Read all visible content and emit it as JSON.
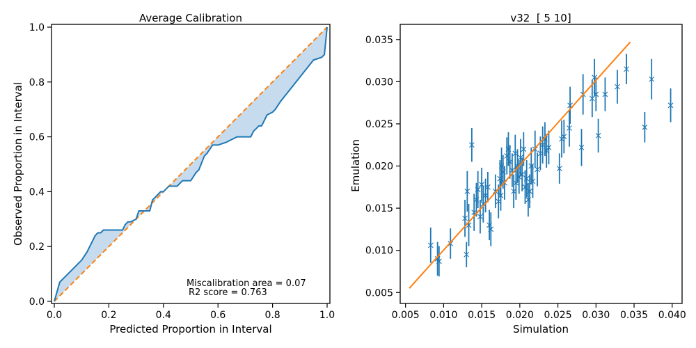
{
  "chart_data": [
    {
      "type": "line",
      "title": "Average Calibration",
      "xlabel": "Predicted Proportion in Interval",
      "ylabel": "Observed Proportion in Interval",
      "xlim": [
        0,
        1
      ],
      "ylim": [
        0,
        1
      ],
      "xticks": [
        "0.0",
        "0.2",
        "0.4",
        "0.6",
        "0.8",
        "1.0"
      ],
      "yticks": [
        "0.0",
        "0.2",
        "0.4",
        "0.6",
        "0.8",
        "1.0"
      ],
      "grid": false,
      "annotations": [
        "Miscalibration area = 0.07",
        "R2 score = 0.763"
      ],
      "colors": {
        "curve": "#1f77b4",
        "fill": "#c6dcee",
        "ideal": "#ff7f0e"
      },
      "series": [
        {
          "x": [
            0,
            0.02,
            0.03,
            0.05,
            0.07,
            0.09,
            0.1,
            0.12,
            0.13,
            0.14,
            0.15,
            0.16,
            0.17,
            0.18,
            0.2,
            0.25,
            0.26,
            0.27,
            0.28,
            0.3,
            0.31,
            0.33,
            0.35,
            0.36,
            0.37,
            0.38,
            0.39,
            0.4,
            0.41,
            0.42,
            0.45,
            0.47,
            0.5,
            0.52,
            0.53,
            0.55,
            0.56,
            0.58,
            0.6,
            0.63,
            0.65,
            0.67,
            0.72,
            0.73,
            0.75,
            0.76,
            0.78,
            0.8,
            0.81,
            0.83,
            0.95,
            0.98,
            0.99,
            1.0
          ],
          "y": [
            0,
            0.07,
            0.08,
            0.1,
            0.12,
            0.14,
            0.15,
            0.18,
            0.2,
            0.22,
            0.24,
            0.25,
            0.25,
            0.26,
            0.26,
            0.26,
            0.28,
            0.29,
            0.29,
            0.3,
            0.33,
            0.33,
            0.33,
            0.37,
            0.38,
            0.39,
            0.4,
            0.4,
            0.41,
            0.42,
            0.42,
            0.44,
            0.44,
            0.47,
            0.48,
            0.53,
            0.54,
            0.57,
            0.57,
            0.58,
            0.59,
            0.6,
            0.6,
            0.62,
            0.64,
            0.64,
            0.68,
            0.69,
            0.7,
            0.73,
            0.88,
            0.89,
            0.9,
            1.0
          ]
        },
        {
          "name": "ideal",
          "x": [
            0,
            1
          ],
          "y": [
            0,
            1
          ]
        }
      ]
    },
    {
      "type": "scatter",
      "title": "v32  [ 5 10]",
      "xlabel": "Simulation",
      "ylabel": "Emulation",
      "xlim": [
        0.0043,
        0.0413
      ],
      "ylim": [
        0.0037,
        0.0368
      ],
      "xticks": [
        "0.005",
        "0.010",
        "0.015",
        "0.020",
        "0.025",
        "0.030",
        "0.035",
        "0.040"
      ],
      "yticks": [
        "0.005",
        "0.010",
        "0.015",
        "0.020",
        "0.025",
        "0.030",
        "0.035"
      ],
      "grid": false,
      "colors": {
        "points": "#1f77b4",
        "fit": "#ff7f0e"
      },
      "fit_line": {
        "x": [
          0.0055,
          0.0345
        ],
        "y": [
          0.0055,
          0.0347
        ]
      },
      "points": [
        {
          "x": 0.0083,
          "y": 0.0106,
          "err": 0.0021
        },
        {
          "x": 0.0092,
          "y": 0.009,
          "err": 0.002
        },
        {
          "x": 0.0094,
          "y": 0.0087,
          "err": 0.0018
        },
        {
          "x": 0.0109,
          "y": 0.0108,
          "err": 0.0018
        },
        {
          "x": 0.0128,
          "y": 0.0138,
          "err": 0.0022
        },
        {
          "x": 0.013,
          "y": 0.0095,
          "err": 0.0015
        },
        {
          "x": 0.0131,
          "y": 0.017,
          "err": 0.0024
        },
        {
          "x": 0.0133,
          "y": 0.013,
          "err": 0.0025
        },
        {
          "x": 0.0137,
          "y": 0.0225,
          "err": 0.002
        },
        {
          "x": 0.014,
          "y": 0.0145,
          "err": 0.0022
        },
        {
          "x": 0.0143,
          "y": 0.016,
          "err": 0.002
        },
        {
          "x": 0.0145,
          "y": 0.0172,
          "err": 0.0022
        },
        {
          "x": 0.0148,
          "y": 0.014,
          "err": 0.002
        },
        {
          "x": 0.015,
          "y": 0.0178,
          "err": 0.002
        },
        {
          "x": 0.0152,
          "y": 0.0155,
          "err": 0.0022
        },
        {
          "x": 0.0155,
          "y": 0.0165,
          "err": 0.002
        },
        {
          "x": 0.0158,
          "y": 0.0175,
          "err": 0.0018
        },
        {
          "x": 0.016,
          "y": 0.013,
          "err": 0.0018
        },
        {
          "x": 0.0162,
          "y": 0.0125,
          "err": 0.002
        },
        {
          "x": 0.0168,
          "y": 0.017,
          "err": 0.002
        },
        {
          "x": 0.0172,
          "y": 0.0158,
          "err": 0.002
        },
        {
          "x": 0.0174,
          "y": 0.0185,
          "err": 0.0022
        },
        {
          "x": 0.0175,
          "y": 0.0165,
          "err": 0.0018
        },
        {
          "x": 0.0176,
          "y": 0.02,
          "err": 0.0022
        },
        {
          "x": 0.0178,
          "y": 0.0193,
          "err": 0.002
        },
        {
          "x": 0.018,
          "y": 0.018,
          "err": 0.002
        },
        {
          "x": 0.0183,
          "y": 0.0212,
          "err": 0.0022
        },
        {
          "x": 0.0185,
          "y": 0.022,
          "err": 0.002
        },
        {
          "x": 0.0187,
          "y": 0.0205,
          "err": 0.002
        },
        {
          "x": 0.019,
          "y": 0.0195,
          "err": 0.002
        },
        {
          "x": 0.0192,
          "y": 0.017,
          "err": 0.002
        },
        {
          "x": 0.0194,
          "y": 0.0215,
          "err": 0.0022
        },
        {
          "x": 0.0195,
          "y": 0.018,
          "err": 0.002
        },
        {
          "x": 0.0197,
          "y": 0.02,
          "err": 0.002
        },
        {
          "x": 0.0199,
          "y": 0.0187,
          "err": 0.002
        },
        {
          "x": 0.0201,
          "y": 0.021,
          "err": 0.0022
        },
        {
          "x": 0.0203,
          "y": 0.019,
          "err": 0.002
        },
        {
          "x": 0.0205,
          "y": 0.022,
          "err": 0.002
        },
        {
          "x": 0.0207,
          "y": 0.0175,
          "err": 0.002
        },
        {
          "x": 0.0209,
          "y": 0.0185,
          "err": 0.0022
        },
        {
          "x": 0.0211,
          "y": 0.016,
          "err": 0.002
        },
        {
          "x": 0.0213,
          "y": 0.017,
          "err": 0.002
        },
        {
          "x": 0.0215,
          "y": 0.02,
          "err": 0.0022
        },
        {
          "x": 0.0217,
          "y": 0.0182,
          "err": 0.002
        },
        {
          "x": 0.022,
          "y": 0.022,
          "err": 0.0022
        },
        {
          "x": 0.0223,
          "y": 0.0196,
          "err": 0.002
        },
        {
          "x": 0.0227,
          "y": 0.0215,
          "err": 0.002
        },
        {
          "x": 0.023,
          "y": 0.0225,
          "err": 0.0022
        },
        {
          "x": 0.0233,
          "y": 0.0232,
          "err": 0.002
        },
        {
          "x": 0.0235,
          "y": 0.0218,
          "err": 0.002
        },
        {
          "x": 0.0238,
          "y": 0.0222,
          "err": 0.002
        },
        {
          "x": 0.0252,
          "y": 0.0197,
          "err": 0.0018
        },
        {
          "x": 0.0255,
          "y": 0.0232,
          "err": 0.0022
        },
        {
          "x": 0.0258,
          "y": 0.0235,
          "err": 0.002
        },
        {
          "x": 0.0265,
          "y": 0.0245,
          "err": 0.0022
        },
        {
          "x": 0.0266,
          "y": 0.0272,
          "err": 0.0022
        },
        {
          "x": 0.0281,
          "y": 0.0222,
          "err": 0.0022
        },
        {
          "x": 0.0283,
          "y": 0.0285,
          "err": 0.0024
        },
        {
          "x": 0.0295,
          "y": 0.028,
          "err": 0.0022
        },
        {
          "x": 0.0298,
          "y": 0.0305,
          "err": 0.0022
        },
        {
          "x": 0.03,
          "y": 0.0285,
          "err": 0.002
        },
        {
          "x": 0.0303,
          "y": 0.0236,
          "err": 0.002
        },
        {
          "x": 0.0312,
          "y": 0.0285,
          "err": 0.002
        },
        {
          "x": 0.0328,
          "y": 0.0294,
          "err": 0.002
        },
        {
          "x": 0.034,
          "y": 0.0315,
          "err": 0.0018
        },
        {
          "x": 0.0364,
          "y": 0.0246,
          "err": 0.0018
        },
        {
          "x": 0.0373,
          "y": 0.0303,
          "err": 0.0024
        },
        {
          "x": 0.0398,
          "y": 0.0272,
          "err": 0.002
        }
      ]
    }
  ]
}
